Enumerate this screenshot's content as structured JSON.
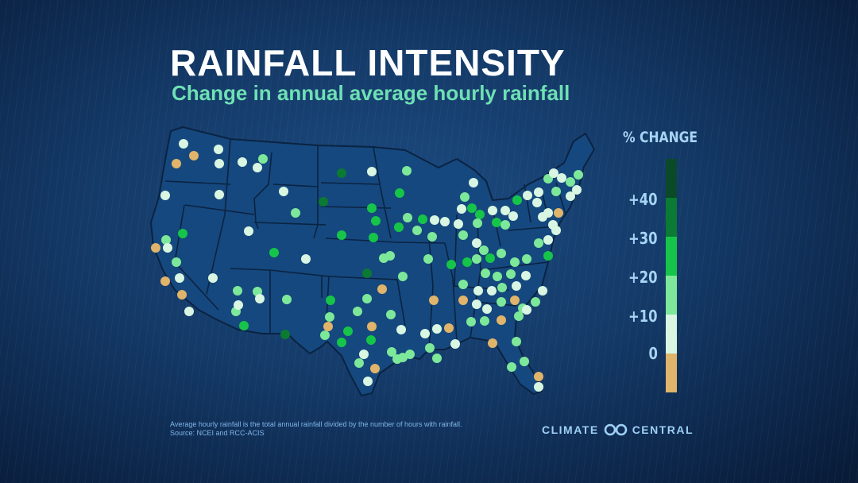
{
  "title": "RAINFALL INTENSITY",
  "subtitle": "Change in annual average hourly rainfall",
  "legend": {
    "title": "% CHANGE",
    "ticks": [
      "+40",
      "+30",
      "+20",
      "+10",
      "0"
    ],
    "scale": [
      {
        "range": "40+",
        "color": "#0a4a28"
      },
      {
        "range": "30-40",
        "color": "#0b7a32"
      },
      {
        "range": "20-30",
        "color": "#17c44a"
      },
      {
        "range": "10-20",
        "color": "#7ee89a"
      },
      {
        "range": "0-10",
        "color": "#d8f6e2"
      },
      {
        "range": "<0",
        "color": "#e0b46a"
      }
    ]
  },
  "map": {
    "region": "Contiguous United States",
    "fill_color": "#15487e",
    "border_color": "#0b2342"
  },
  "footnote": {
    "line1": "Average hourly rainfall is the total annual rainfall divided by the number of hours with rainfall.",
    "line2": "Source: NCEI and RCC-ACIS"
  },
  "logo": {
    "left": "CLIMATE",
    "right": "CENTRAL",
    "icon": "infinity-icon"
  }
}
